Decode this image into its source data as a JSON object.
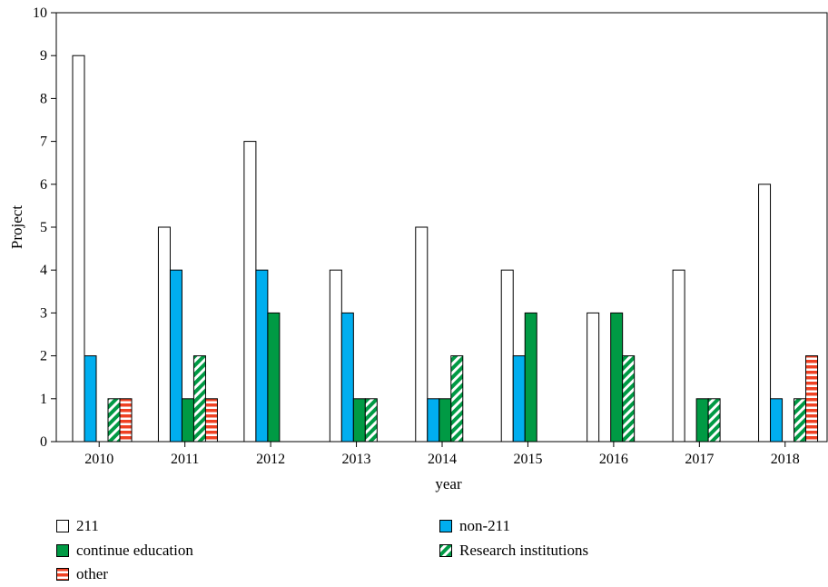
{
  "chart_data": {
    "type": "bar",
    "categories": [
      "2010",
      "2011",
      "2012",
      "2013",
      "2014",
      "2015",
      "2016",
      "2017",
      "2018"
    ],
    "series": [
      {
        "name": "211",
        "values": [
          9,
          5,
          7,
          4,
          5,
          4,
          3,
          4,
          6
        ],
        "color": "#ffffff",
        "pattern": "none"
      },
      {
        "name": "non-211",
        "values": [
          2,
          4,
          4,
          3,
          1,
          2,
          0,
          0,
          1
        ],
        "color": "#00aeef",
        "pattern": "solid"
      },
      {
        "name": "continue education",
        "values": [
          0,
          1,
          3,
          1,
          1,
          3,
          3,
          1,
          0
        ],
        "color": "#009a44",
        "pattern": "solid"
      },
      {
        "name": "Research institutions",
        "values": [
          1,
          2,
          0,
          1,
          2,
          0,
          2,
          1,
          1
        ],
        "color": "#009a44",
        "pattern": "diagonal-stripes"
      },
      {
        "name": "other",
        "values": [
          1,
          1,
          0,
          0,
          0,
          0,
          0,
          0,
          2
        ],
        "color": "#ef4123",
        "pattern": "horizontal-stripes"
      }
    ],
    "xlabel": "year",
    "ylabel": "Project",
    "ylim": [
      0,
      10
    ],
    "yticks": [
      "0",
      "1",
      "2",
      "3",
      "4",
      "5",
      "6",
      "7",
      "8",
      "9",
      "10"
    ],
    "grid": false,
    "legend_position": "bottom"
  },
  "legend": [
    {
      "label": "211",
      "swatch": "white"
    },
    {
      "label": "non-211",
      "swatch": "blue"
    },
    {
      "label": "continue education",
      "swatch": "green"
    },
    {
      "label": "Research institutions",
      "swatch": "green-hatch"
    },
    {
      "label": "other",
      "swatch": "red-stripes"
    }
  ]
}
